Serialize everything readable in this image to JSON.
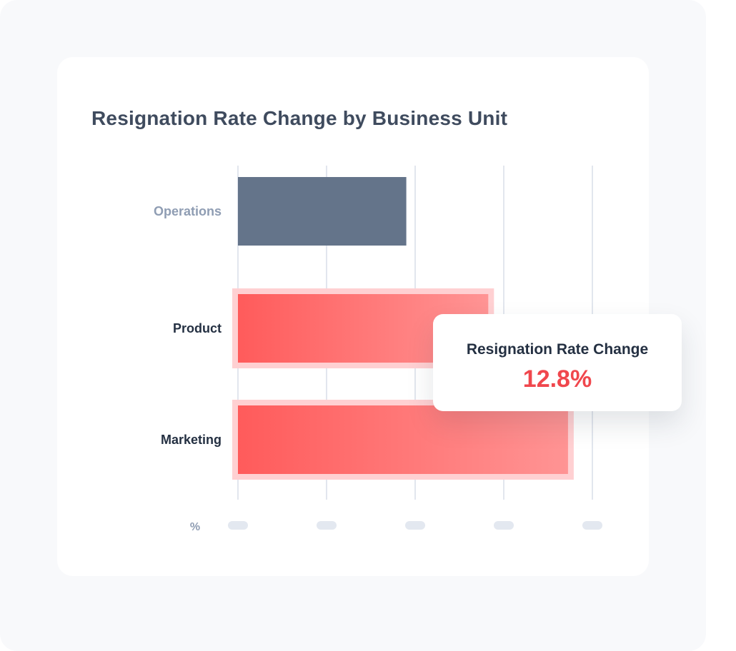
{
  "chart_data": {
    "type": "bar",
    "orientation": "horizontal",
    "title": "Resignation Rate Change by Business Unit",
    "xlabel": "%",
    "ylabel": "",
    "categories": [
      "Operations",
      "Product",
      "Marketing"
    ],
    "values": [
      7.6,
      11.3,
      14.9
    ],
    "xlim": [
      0,
      16
    ],
    "x_ticks": [
      0,
      4,
      8,
      12,
      16
    ],
    "x_tick_labels_visible": false,
    "grid": "vertical",
    "highlighted": [
      "Product",
      "Marketing"
    ],
    "colors": {
      "default_bar": "#64748a",
      "highlight_start": "#ff5b5b",
      "highlight_end": "#ff9494",
      "highlight_frame": "#ffd0d2",
      "grid": "#e2e6ee",
      "tick_placeholder": "#e3e8f0",
      "muted_label": "#8f9db3",
      "strong_label": "#243042"
    }
  },
  "tooltip": {
    "label": "Resignation Rate Change",
    "value": "12.8%"
  }
}
